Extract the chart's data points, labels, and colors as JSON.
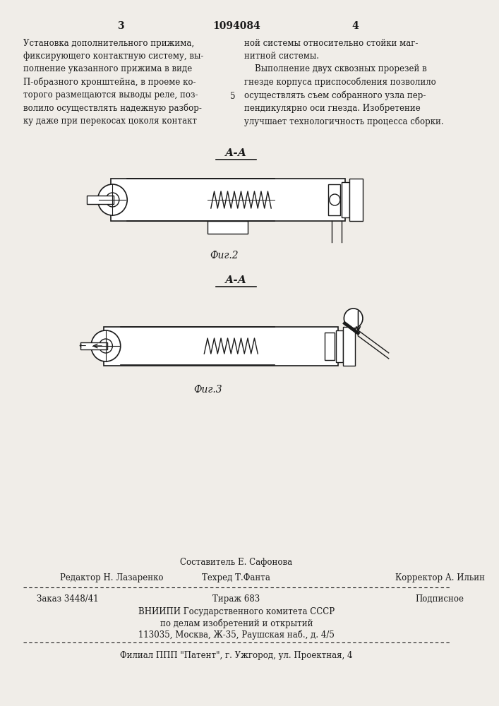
{
  "bg_color": "#f0ede8",
  "text_color": "#1a1a1a",
  "page_num_left": "3",
  "page_center": "1094084",
  "page_num_right": "4",
  "paragraph_left": "Установка дополнительного прижима,\nфиксирующего контактную систему, вы-\nполнение указанного прижима в виде\nП-образного кронштейна, в проеме ко-\nторого размещаются выводы реле, поз-\nволило осуществлять надежную разбор-\nку даже при перекосах цоколя контакт",
  "paragraph_right": "ной системы относительно стойки маг-\nнитной системы.\n    Выполнение двух сквозных прорезей в\nгнезде корпуса приспособления позволило\nосуществлять съем собранного узла пер-\nпендикулярно оси гнезда. Изобретение\nулучшает технологичность процесса сборки.",
  "line_number_5": "5",
  "fig2_label": "А-А",
  "fig2_caption": "Фиг.2",
  "fig3_label": "А-А",
  "fig3_caption": "Фиг.3",
  "footer_composer": "Составитель Е. Сафонова",
  "footer_editor": "Редактор Н. Лазаренко",
  "footer_tech": "Техред Т.Фанта",
  "footer_corrector": "Корректор А. Ильин",
  "footer_order": "Заказ 3448/41",
  "footer_circulation": "Тираж 683",
  "footer_subscription": "Подписное",
  "footer_vniipii": "ВНИИПИ Государственного комитета СССР",
  "footer_dept": "по делам изобретений и открытий",
  "footer_address": "113035, Москва, Ж-35, Раушская наб., д. 4/5",
  "footer_branch": "Филиал ППП \"Патент\", г. Ужгород, ул. Проектная, 4"
}
